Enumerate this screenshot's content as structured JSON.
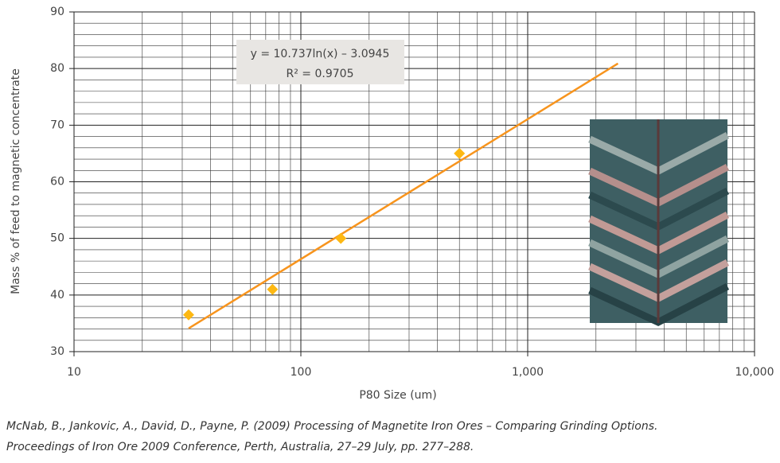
{
  "chart_data": {
    "type": "scatter",
    "xlabel": "P80 Size (um)",
    "ylabel": "Mass % of feed to magnetic concentrate",
    "x": [
      32,
      75,
      150,
      500
    ],
    "series": [
      {
        "color": "#fdb813",
        "values": [
          36.5,
          41,
          50,
          65
        ]
      }
    ],
    "xlim": [
      10,
      10000
    ],
    "log_x": true,
    "xticks": [
      10,
      100,
      {
        "value": 1000,
        "label": "1,000"
      },
      {
        "value": 10000,
        "label": "10,000"
      }
    ],
    "ylim": [
      30,
      90
    ],
    "yticks": [
      30,
      40,
      50,
      60,
      70,
      80,
      90
    ],
    "grid": true,
    "minor_grid": true,
    "trendline": {
      "color": "#f7941d",
      "x": [
        32,
        2500
      ],
      "y": [
        34.1,
        80.9
      ],
      "equation": "y = 10.737ln(x) – 3.0945",
      "r2": "R² = 0.9705"
    },
    "caption": [
      "McNab, B., Jankovic, A., David, D., Payne, P. (2009) Processing of Magnetite Iron Ores – Comparing Grinding Options.",
      "Proceedings of Iron Ore 2009 Conference, Perth, Australia, 27–29 July, pp. 277–288."
    ]
  }
}
